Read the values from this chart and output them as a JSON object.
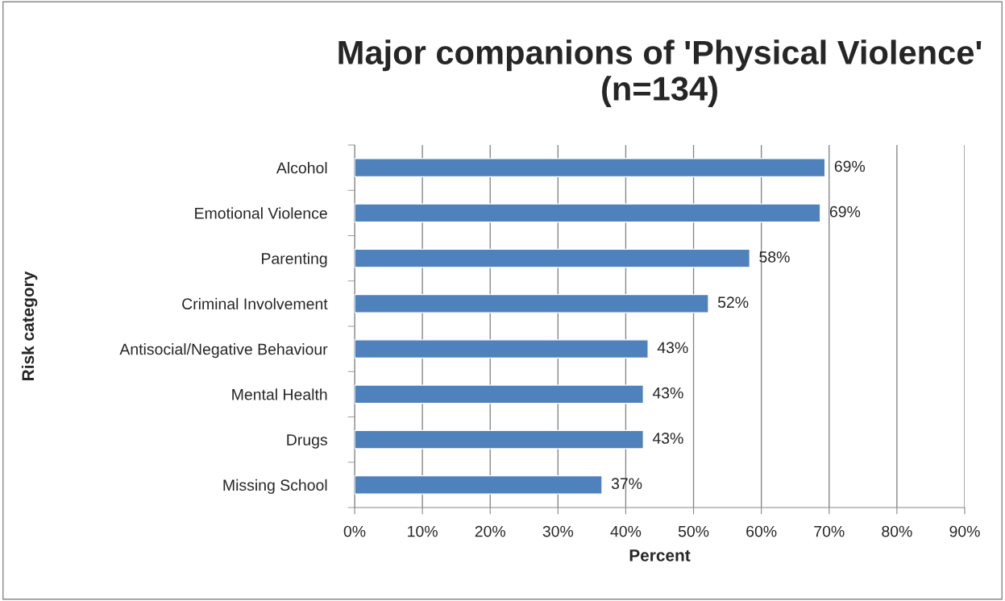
{
  "chart_data": {
    "type": "bar",
    "orientation": "horizontal",
    "title": "Major companions of 'Physical Violence'\n(n=134)",
    "xlabel": "Percent",
    "ylabel": "Risk category",
    "categories": [
      "Alcohol",
      "Emotional Violence",
      "Parenting",
      "Criminal Involvement",
      "Antisocial/Negative Behaviour",
      "Mental Health",
      "Drugs",
      "Missing School"
    ],
    "values": [
      69.4,
      68.7,
      58.3,
      52.2,
      43.3,
      42.6,
      42.6,
      36.5
    ],
    "value_labels": [
      "69%",
      "69%",
      "58%",
      "52%",
      "43%",
      "43%",
      "43%",
      "37%"
    ],
    "color": "#4f81bd",
    "xlim": [
      0,
      90
    ],
    "xticks": [
      {
        "value": 0,
        "label": "0%"
      },
      {
        "value": 10,
        "label": "10%"
      },
      {
        "value": 20,
        "label": "20%"
      },
      {
        "value": 30,
        "label": "30%"
      },
      {
        "value": 40,
        "label": "40%"
      },
      {
        "value": 50,
        "label": "50%"
      },
      {
        "value": 60,
        "label": "60%"
      },
      {
        "value": 70,
        "label": "70%"
      },
      {
        "value": 80,
        "label": "80%"
      },
      {
        "value": 90,
        "label": "90%"
      }
    ],
    "grid": "x"
  }
}
